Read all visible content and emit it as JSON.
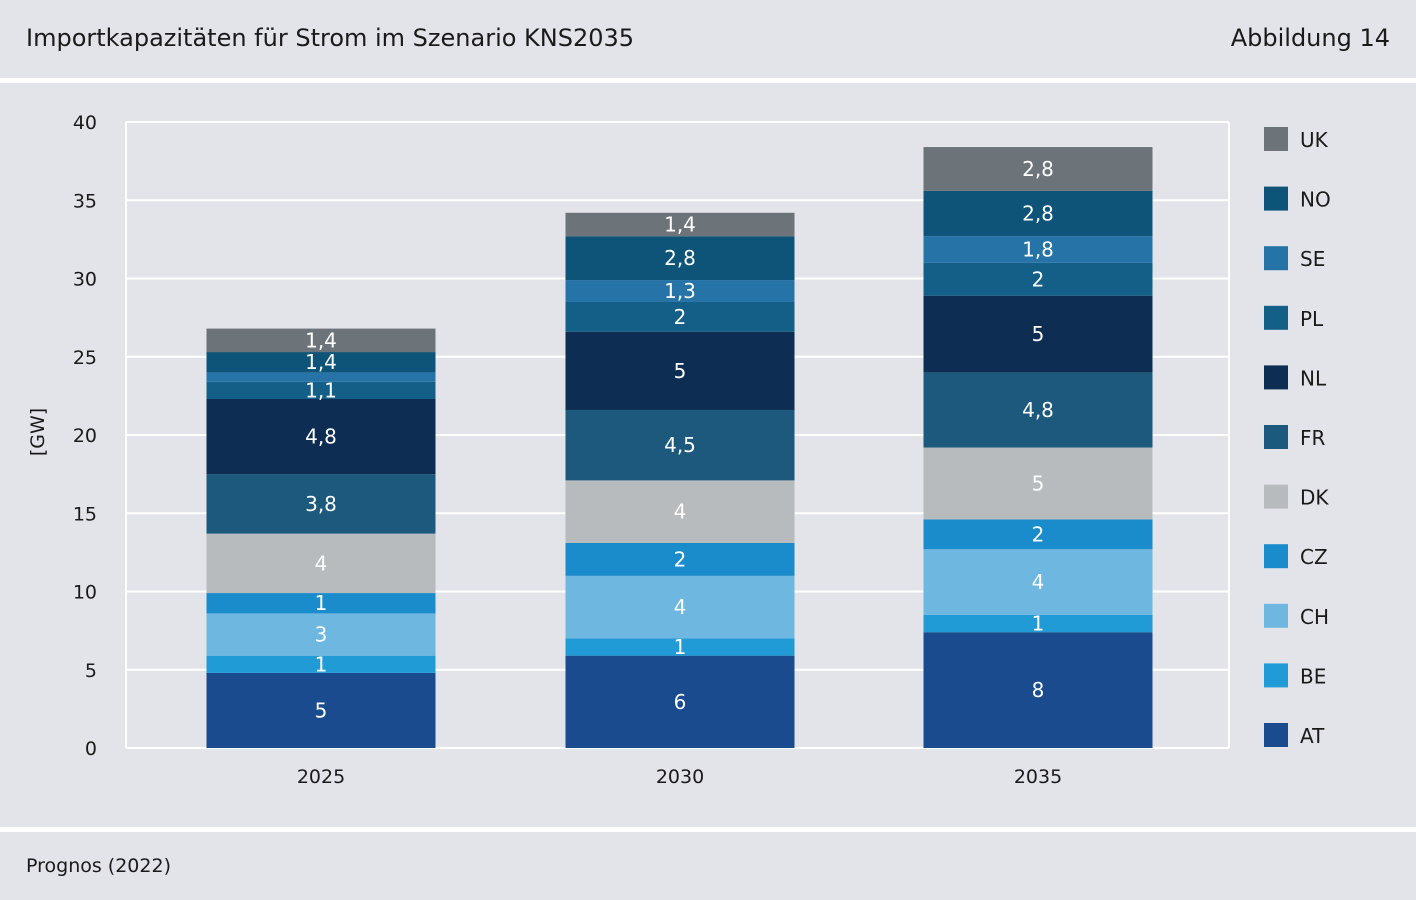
{
  "header": {
    "title": "Importkapazitäten für Strom im Szenario KNS2035",
    "figure_label": "Abbildung 14"
  },
  "footer": {
    "source": "Prognos (2022)"
  },
  "chart_data": {
    "type": "bar",
    "stacked": true,
    "title": "Importkapazitäten für Strom im Szenario KNS2035",
    "xlabel": "",
    "ylabel": "[GW]",
    "ylim": [
      0,
      40
    ],
    "yticks": [
      0,
      5,
      10,
      15,
      20,
      25,
      30,
      35,
      40
    ],
    "grid": true,
    "legend_position": "right",
    "categories": [
      "2025",
      "2030",
      "2035"
    ],
    "series": [
      {
        "name": "AT",
        "color": "#1b4b8f",
        "values": [
          5,
          6,
          8
        ],
        "labels": [
          "5",
          "6",
          "8"
        ],
        "plot_values": [
          4.8,
          5.9,
          7.4
        ]
      },
      {
        "name": "BE",
        "color": "#219bd6",
        "values": [
          1,
          1,
          1
        ],
        "labels": [
          "1",
          "1",
          "1"
        ],
        "plot_values": [
          1.1,
          1.1,
          1.1
        ]
      },
      {
        "name": "CH",
        "color": "#6eb7e1",
        "values": [
          3,
          4,
          4
        ],
        "labels": [
          "3",
          "4",
          "4"
        ],
        "plot_values": [
          2.7,
          4.0,
          4.2
        ]
      },
      {
        "name": "CZ",
        "color": "#1a8ccc",
        "values": [
          1,
          2,
          2
        ],
        "labels": [
          "1",
          "2",
          "2"
        ],
        "plot_values": [
          1.3,
          2.1,
          1.9
        ]
      },
      {
        "name": "DK",
        "color": "#b7bbbd",
        "values": [
          4,
          4,
          5
        ],
        "labels": [
          "4",
          "4",
          "5"
        ],
        "plot_values": [
          3.8,
          4.0,
          4.6
        ]
      },
      {
        "name": "FR",
        "color": "#1c597c",
        "values": [
          3.8,
          4.5,
          4.8
        ],
        "labels": [
          "3,8",
          "4,5",
          "4,8"
        ],
        "plot_values": [
          3.8,
          4.5,
          4.8
        ]
      },
      {
        "name": "NL",
        "color": "#0d2d53",
        "values": [
          4.8,
          5,
          5
        ],
        "labels": [
          "4,8",
          "5",
          "5"
        ],
        "plot_values": [
          4.8,
          5.0,
          4.9
        ]
      },
      {
        "name": "PL",
        "color": "#135f87",
        "values": [
          1.1,
          2,
          2
        ],
        "labels": [
          "1,1",
          "2",
          "2"
        ],
        "plot_values": [
          1.1,
          1.9,
          2.1
        ]
      },
      {
        "name": "SE",
        "color": "#2573a7",
        "values": [
          0.6,
          1.3,
          1.8
        ],
        "labels": [
          "",
          "1,3",
          "1,8"
        ],
        "plot_values": [
          0.6,
          1.4,
          1.7
        ]
      },
      {
        "name": "NO",
        "color": "#0d5478",
        "values": [
          1.4,
          2.8,
          2.8
        ],
        "labels": [
          "1,4",
          "2,8",
          "2,8"
        ],
        "plot_values": [
          1.3,
          2.8,
          2.9
        ]
      },
      {
        "name": "UK",
        "color": "#6c7379",
        "values": [
          1.4,
          1.4,
          2.8
        ],
        "labels": [
          "1,4",
          "1,4",
          "2,8"
        ],
        "plot_values": [
          1.5,
          1.5,
          2.8
        ]
      }
    ]
  }
}
